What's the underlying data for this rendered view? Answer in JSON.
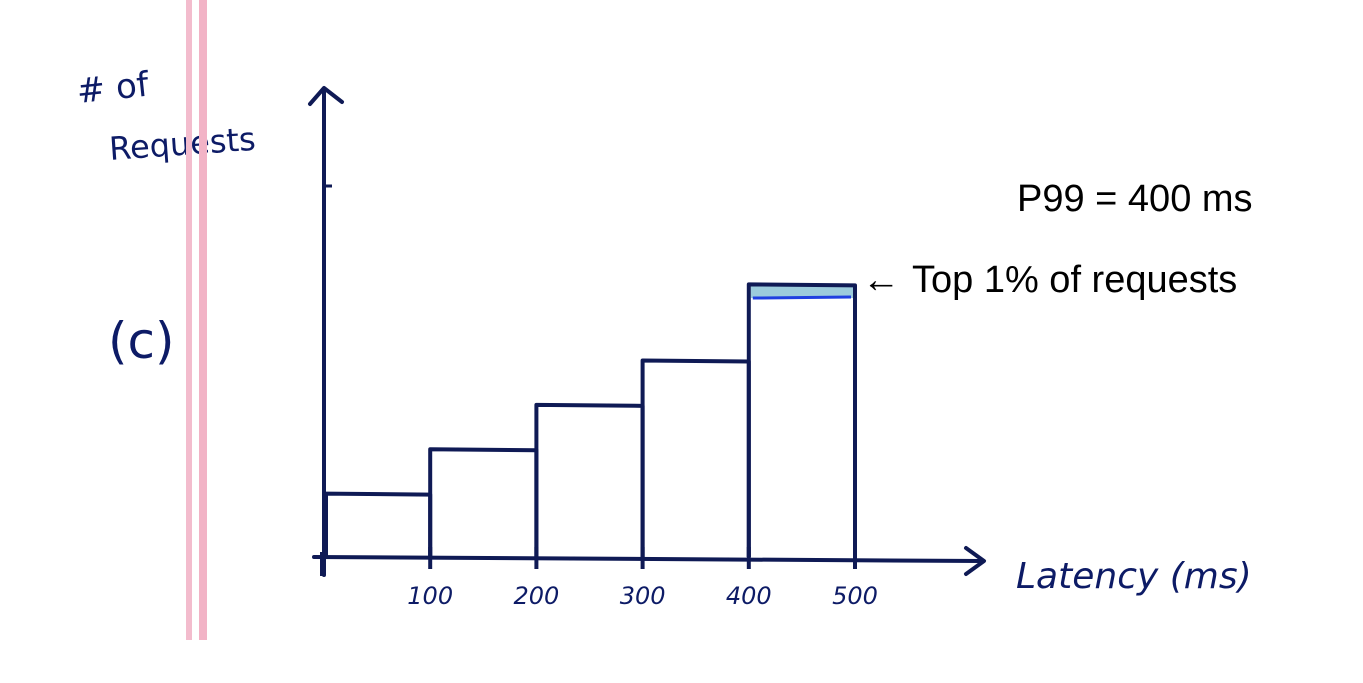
{
  "panel_label": "(c)",
  "colors": {
    "ink": "#0f1a55",
    "label_ink": "#0d1b66",
    "margin_pink": "#f2b6c8",
    "highlight_fill": "#9ccbdc",
    "highlight_line": "#1f3fe0"
  },
  "annotations": {
    "p99": "P99 = 400 ms",
    "top_pct": "Top 1% of requests",
    "arrow": "←"
  },
  "chart_data": {
    "type": "bar",
    "title": "",
    "xlabel": "Latency (ms)",
    "ylabel_line1": "# of",
    "ylabel_line2": "Requests",
    "x_ticks": [
      "100",
      "200",
      "300",
      "400",
      "500"
    ],
    "bins": [
      {
        "from": 0,
        "to": 100,
        "value": 1.0
      },
      {
        "from": 100,
        "to": 200,
        "value": 1.7
      },
      {
        "from": 200,
        "to": 300,
        "value": 2.4
      },
      {
        "from": 300,
        "to": 400,
        "value": 3.1
      },
      {
        "from": 400,
        "to": 500,
        "value": 4.3
      }
    ],
    "highlight": {
      "bin_index": 4,
      "fraction_of_bar": 0.05
    },
    "xlim": [
      0,
      500
    ],
    "ylim": [
      0,
      5.9
    ],
    "grid": false
  }
}
